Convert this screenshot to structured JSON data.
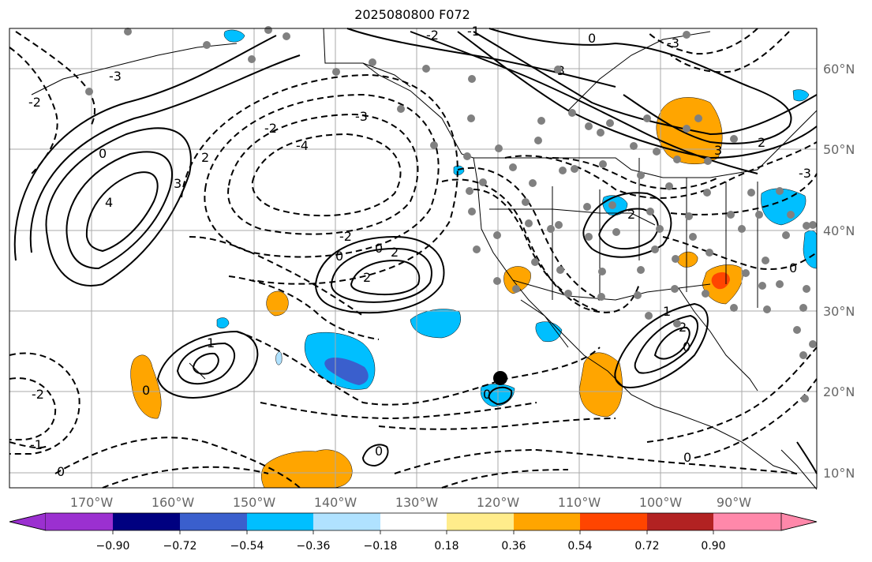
{
  "title": "2025080800 F072",
  "map": {
    "lat_labels": [
      "60°N",
      "50°N",
      "40°N",
      "30°N",
      "20°N",
      "10°N"
    ],
    "lon_labels": [
      "170°W",
      "160°W",
      "150°W",
      "140°W",
      "130°W",
      "120°W",
      "110°W",
      "100°W",
      "90°W"
    ],
    "marker_icon": "storm-center-marker",
    "station_icon": "station-dot-icon",
    "contour_labels": [
      "-4",
      "-3",
      "-2",
      "-1",
      "0",
      "1",
      "2",
      "3",
      "4"
    ]
  },
  "colorbar": {
    "tick_labels": [
      "−0.90",
      "−0.72",
      "−0.54",
      "−0.36",
      "−0.18",
      "0.18",
      "0.36",
      "0.54",
      "0.72",
      "0.90"
    ],
    "colors": [
      "#9b30d0",
      "#000080",
      "#3a5fcd",
      "#00bfff",
      "#b0e2ff",
      "#ffffff",
      "#ffec8b",
      "#ffa500",
      "#ff4500",
      "#b22222",
      "#ff88aa"
    ]
  }
}
